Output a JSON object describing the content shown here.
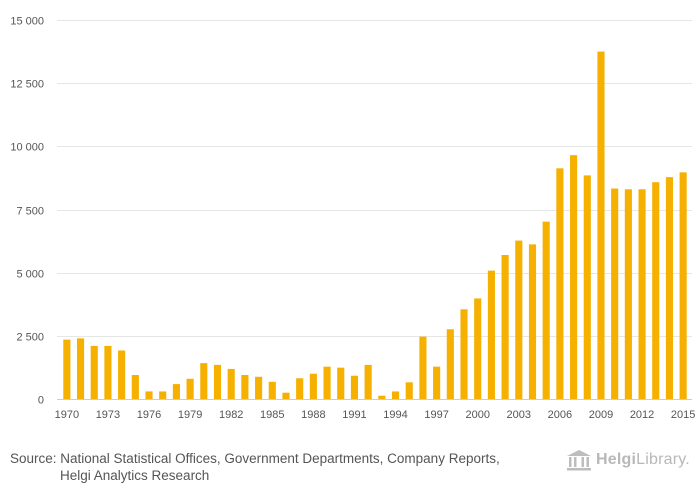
{
  "chart_data": {
    "type": "bar",
    "title": "",
    "xlabel": "",
    "ylabel": "",
    "ylim": [
      0,
      15000
    ],
    "yticks": [
      0,
      2500,
      5000,
      7500,
      10000,
      12500,
      15000
    ],
    "ytick_labels": [
      "0",
      "2 500",
      "5 000",
      "7 500",
      "10 000",
      "12 500",
      "15 000"
    ],
    "xtick_labels": [
      "1970",
      "1973",
      "1976",
      "1979",
      "1982",
      "1985",
      "1988",
      "1991",
      "1994",
      "1997",
      "2000",
      "2003",
      "2006",
      "2009",
      "2012",
      "2015"
    ],
    "categories": [
      "1970",
      "1971",
      "1972",
      "1973",
      "1974",
      "1975",
      "1976",
      "1977",
      "1978",
      "1979",
      "1980",
      "1981",
      "1982",
      "1983",
      "1984",
      "1985",
      "1986",
      "1987",
      "1988",
      "1989",
      "1990",
      "1991",
      "1992",
      "1993",
      "1994",
      "1995",
      "1996",
      "1997",
      "1998",
      "1999",
      "2000",
      "2001",
      "2002",
      "2003",
      "2004",
      "2005",
      "2006",
      "2007",
      "2008",
      "2009",
      "2010",
      "2011",
      "2012",
      "2013",
      "2014",
      "2015"
    ],
    "values": [
      2350,
      2400,
      2100,
      2100,
      1920,
      950,
      300,
      300,
      590,
      800,
      1420,
      1350,
      1190,
      950,
      880,
      680,
      250,
      820,
      1000,
      1280,
      1240,
      920,
      1350,
      130,
      300,
      660,
      2470,
      1280,
      2760,
      3550,
      3980,
      5080,
      5700,
      6270,
      6120,
      7020,
      9130,
      9650,
      8850,
      13750,
      8330,
      8300,
      8300,
      8580,
      8780,
      8970
    ],
    "bar_color": "#f5b000",
    "grid": true
  },
  "footer": {
    "source_line1": "Source: National Statistical Offices, Government Departments, Company Reports,",
    "source_line2": "Helgi Analytics Research",
    "brand_bold": "Helgi",
    "brand_rest": "Library."
  }
}
